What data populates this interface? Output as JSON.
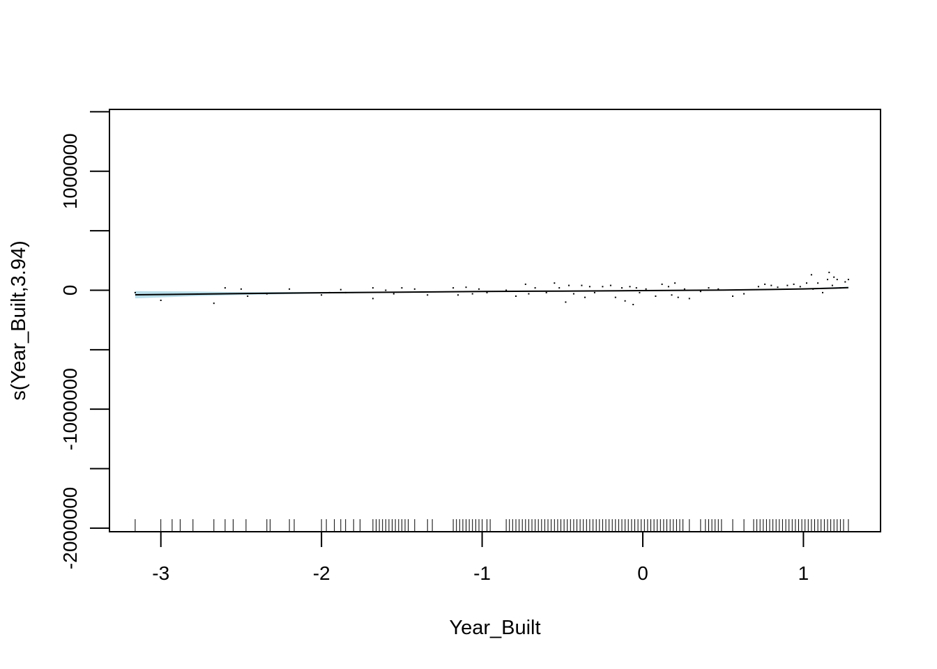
{
  "chart_data": {
    "type": "line",
    "xlabel": "Year_Built",
    "ylabel": "s(Year_Built,3.94)",
    "xlim": [
      -3.32,
      1.48
    ],
    "ylim": [
      -2030000,
      1520000
    ],
    "x_ticks": [
      {
        "value": -3,
        "label": "-3"
      },
      {
        "value": -2,
        "label": "-2"
      },
      {
        "value": -1,
        "label": "-1"
      },
      {
        "value": 0,
        "label": "0"
      },
      {
        "value": 1,
        "label": "1"
      }
    ],
    "y_ticks": [
      {
        "value": -2000000,
        "label": "-2000000"
      },
      {
        "value": -1500000,
        "label": ""
      },
      {
        "value": -1000000,
        "label": "-1000000"
      },
      {
        "value": -500000,
        "label": ""
      },
      {
        "value": 0,
        "label": "0"
      },
      {
        "value": 500000,
        "label": ""
      },
      {
        "value": 1000000,
        "label": "1000000"
      },
      {
        "value": 1500000,
        "label": ""
      }
    ],
    "smooth": {
      "x": [
        -3.16,
        -2.5,
        -2.0,
        -1.5,
        -1.0,
        -0.5,
        0.0,
        0.5,
        0.8,
        1.0,
        1.2,
        1.28
      ],
      "y": [
        -38000,
        -28000,
        -21000,
        -16000,
        -11000,
        -7000,
        -3000,
        1000,
        6000,
        11000,
        18000,
        22000
      ]
    },
    "confidence_band": {
      "x": [
        -3.16,
        -2.8,
        -2.5,
        -2.0,
        -1.5,
        -1.0,
        -0.5,
        0.0,
        0.5,
        1.0,
        1.28
      ],
      "upper": [
        -8000,
        -11000,
        -16000,
        -15000,
        -12000,
        -8000,
        -4000,
        0,
        4000,
        15000,
        29000
      ],
      "lower": [
        -68000,
        -50000,
        -40000,
        -27000,
        -20000,
        -14000,
        -10000,
        -6000,
        -2000,
        7000,
        15000
      ]
    },
    "rug_x": [
      -3.16,
      -3.0,
      -2.93,
      -2.88,
      -2.8,
      -2.67,
      -2.6,
      -2.55,
      -2.47,
      -2.34,
      -2.32,
      -2.2,
      -2.17,
      -2.0,
      -1.97,
      -1.92,
      -1.88,
      -1.85,
      -1.8,
      -1.76,
      -1.68,
      -1.66,
      -1.64,
      -1.62,
      -1.6,
      -1.58,
      -1.56,
      -1.54,
      -1.52,
      -1.5,
      -1.48,
      -1.46,
      -1.42,
      -1.34,
      -1.31,
      -1.18,
      -1.16,
      -1.14,
      -1.12,
      -1.1,
      -1.08,
      -1.06,
      -1.04,
      -1.02,
      -1.0,
      -0.97,
      -0.95,
      -0.85,
      -0.83,
      -0.81,
      -0.79,
      -0.77,
      -0.75,
      -0.73,
      -0.71,
      -0.69,
      -0.67,
      -0.65,
      -0.63,
      -0.61,
      -0.59,
      -0.57,
      -0.55,
      -0.53,
      -0.51,
      -0.49,
      -0.47,
      -0.45,
      -0.43,
      -0.41,
      -0.39,
      -0.37,
      -0.35,
      -0.33,
      -0.31,
      -0.29,
      -0.27,
      -0.25,
      -0.23,
      -0.21,
      -0.19,
      -0.17,
      -0.15,
      -0.13,
      -0.11,
      -0.09,
      -0.07,
      -0.05,
      -0.03,
      -0.01,
      0.01,
      0.03,
      0.05,
      0.07,
      0.09,
      0.11,
      0.13,
      0.15,
      0.17,
      0.19,
      0.21,
      0.23,
      0.25,
      0.29,
      0.36,
      0.39,
      0.41,
      0.43,
      0.45,
      0.47,
      0.49,
      0.56,
      0.63,
      0.69,
      0.71,
      0.73,
      0.75,
      0.77,
      0.79,
      0.81,
      0.83,
      0.85,
      0.87,
      0.89,
      0.91,
      0.93,
      0.95,
      0.97,
      0.99,
      1.01,
      1.03,
      1.05,
      1.07,
      1.09,
      1.11,
      1.13,
      1.15,
      1.17,
      1.19,
      1.21,
      1.23,
      1.25,
      1.28
    ],
    "partial_residuals": {
      "x": [
        -3.16,
        -3.0,
        -2.67,
        -2.6,
        -2.5,
        -2.46,
        -2.34,
        -2.2,
        -2.0,
        -1.95,
        -1.88,
        -1.85,
        -1.68,
        -1.68,
        -1.6,
        -1.55,
        -1.5,
        -1.42,
        -1.34,
        -1.18,
        -1.15,
        -1.1,
        -1.06,
        -1.02,
        -0.97,
        -0.85,
        -0.79,
        -0.73,
        -0.71,
        -0.67,
        -0.6,
        -0.55,
        -0.52,
        -0.48,
        -0.46,
        -0.43,
        -0.38,
        -0.36,
        -0.33,
        -0.3,
        -0.25,
        -0.2,
        -0.17,
        -0.13,
        -0.11,
        -0.08,
        -0.06,
        -0.04,
        -0.02,
        0.02,
        0.08,
        0.12,
        0.16,
        0.18,
        0.2,
        0.22,
        0.26,
        0.29,
        0.36,
        0.41,
        0.47,
        0.56,
        0.63,
        0.72,
        0.76,
        0.8,
        0.84,
        0.9,
        0.94,
        0.98,
        1.02,
        1.05,
        1.06,
        1.09,
        1.12,
        1.15,
        1.16,
        1.18,
        1.19,
        1.21,
        1.23,
        1.26,
        1.28
      ],
      "y": [
        -20000,
        -85000,
        -110000,
        20000,
        10000,
        -50000,
        -30000,
        10000,
        -40000,
        -20000,
        5000,
        -20000,
        -70000,
        20000,
        0,
        -30000,
        20000,
        10000,
        -40000,
        20000,
        -40000,
        25000,
        -30000,
        10000,
        -20000,
        0,
        -50000,
        50000,
        -30000,
        20000,
        -20000,
        60000,
        20000,
        -100000,
        40000,
        -30000,
        40000,
        -60000,
        30000,
        -20000,
        30000,
        40000,
        -60000,
        20000,
        -90000,
        30000,
        -120000,
        20000,
        -20000,
        10000,
        -50000,
        50000,
        30000,
        -40000,
        60000,
        -60000,
        10000,
        -70000,
        -10000,
        20000,
        10000,
        -50000,
        -30000,
        30000,
        50000,
        40000,
        25000,
        40000,
        50000,
        30000,
        60000,
        130000,
        10000,
        60000,
        -20000,
        90000,
        150000,
        40000,
        110000,
        90000,
        20000,
        70000,
        90000
      ]
    }
  }
}
